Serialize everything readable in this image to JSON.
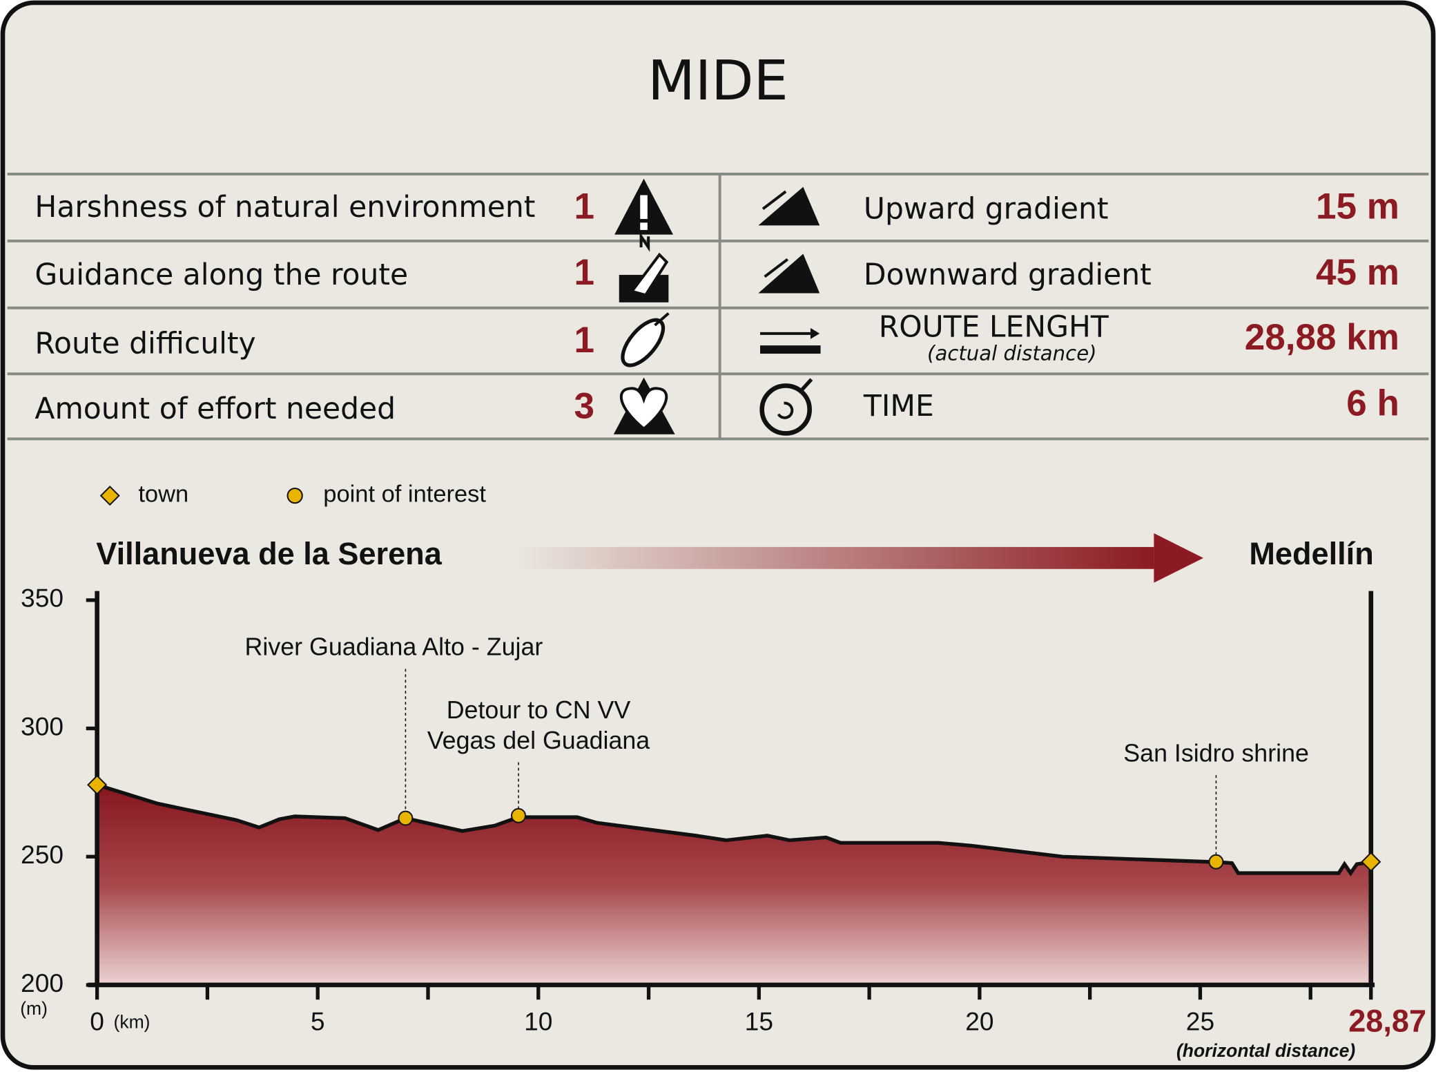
{
  "header": {
    "title": "MIDE"
  },
  "mide": {
    "rows": [
      {
        "left_label": "Harshness of natural environment",
        "left_value": "1",
        "right_label": "Upward gradient",
        "right_value": "15 m"
      },
      {
        "left_label": "Guidance along the route",
        "left_value": "1",
        "right_label": "Downward gradient",
        "right_value": "45 m"
      },
      {
        "left_label": "Route difficulty",
        "left_value": "1",
        "right_label": "ROUTE LENGHT",
        "right_sublabel": "(actual distance)",
        "right_value": "28,88 km"
      },
      {
        "left_label": "Amount of effort needed",
        "left_value": "3",
        "right_label": "TIME",
        "right_value": "6 h"
      }
    ]
  },
  "chart_data": {
    "type": "area",
    "start_label": "Villanueva de la Serena",
    "end_label": "Medellín",
    "y_unit": "(m)",
    "x_unit": "(km)",
    "x_note": "(horizontal distance)",
    "color": "#8b1a22",
    "legend": [
      {
        "label": "town",
        "marker": "diamond",
        "color": "#e8b400"
      },
      {
        "label": "point of interest",
        "marker": "circle",
        "color": "#e8b400"
      }
    ],
    "x": [
      0,
      1.37,
      3.15,
      3.67,
      4.13,
      4.48,
      5.62,
      6.37,
      6.99,
      8.28,
      9.01,
      9.55,
      10.88,
      11.33,
      13.57,
      14.26,
      15.19,
      15.69,
      16.52,
      16.85,
      19.07,
      19.8,
      21.88,
      25.36,
      25.72,
      25.86,
      28.14,
      28.27,
      28.41,
      28.55,
      28.87
    ],
    "values": [
      278,
      270.7,
      264.3,
      261.4,
      264.6,
      265.7,
      265,
      260.4,
      265,
      260,
      262.1,
      265.4,
      265.4,
      263.2,
      258.2,
      256.4,
      258.2,
      256.4,
      257.5,
      255.4,
      255.4,
      254.3,
      250,
      247.9,
      247.5,
      243.6,
      243.6,
      247.1,
      243.6,
      247.1,
      247.9
    ],
    "towns": [
      {
        "x": 0,
        "y": 278
      },
      {
        "x": 28.87,
        "y": 248
      }
    ],
    "points_of_interest": [
      {
        "label": [
          "River Guadiana Alto - Zujar"
        ],
        "x": 6.99,
        "y": 265
      },
      {
        "label": [
          "Detour to CN VV",
          "Vegas del Guadiana"
        ],
        "x": 9.55,
        "y": 266
      },
      {
        "label": [
          "San Isidro shrine"
        ],
        "x": 25.36,
        "y": 248
      }
    ],
    "xlim": [
      0,
      28.87
    ],
    "ylim": [
      200,
      350
    ],
    "xticks": [
      0,
      5,
      10,
      15,
      20,
      25,
      {
        "value": 28.87,
        "label": "28,87"
      }
    ],
    "xminor_ticks": [
      2.5,
      7.5,
      12.5,
      17.5,
      22.5,
      27.5
    ],
    "yticks": [
      200,
      250,
      300,
      350
    ]
  }
}
